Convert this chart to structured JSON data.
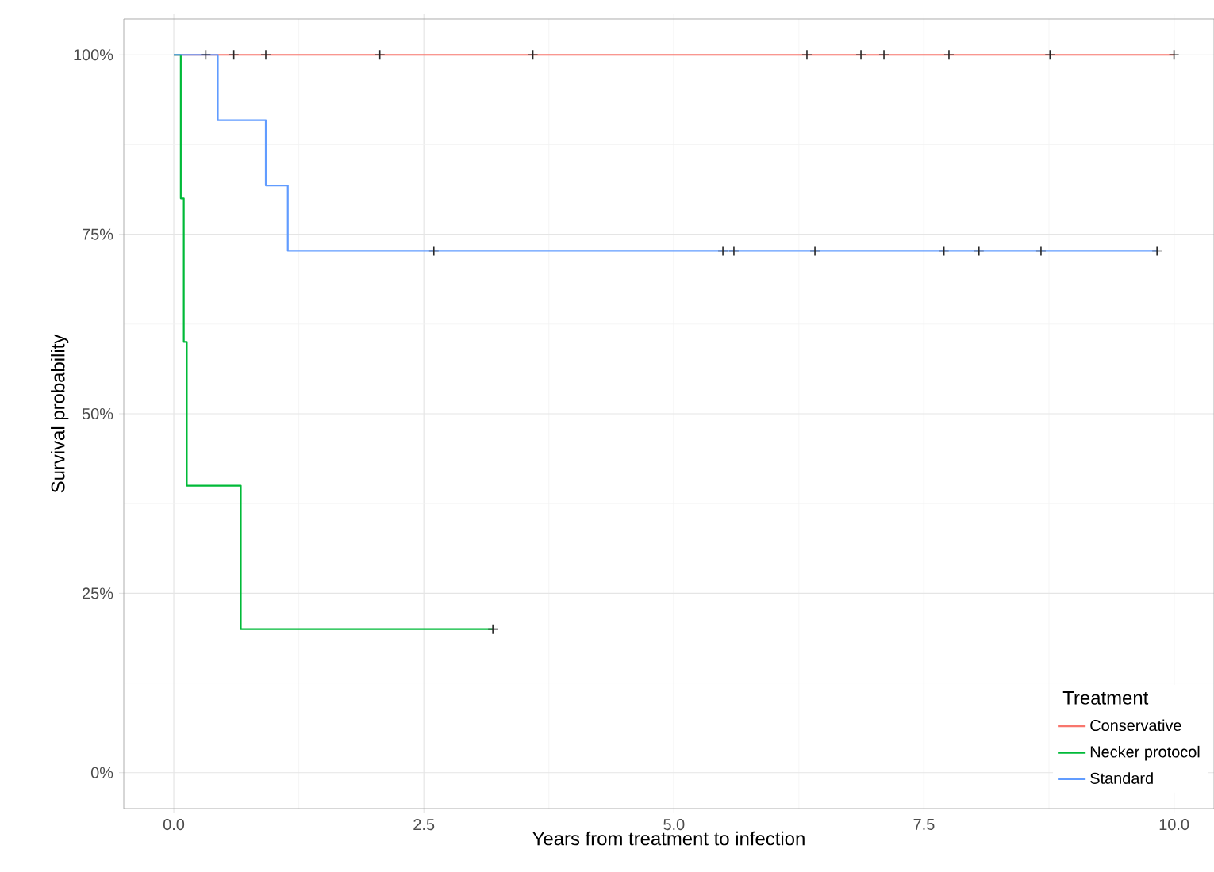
{
  "chart_data": {
    "type": "step",
    "xlabel": "Years from treatment to infection",
    "ylabel": "Survival probability",
    "legend_title": "Treatment",
    "xlim": [
      -0.5,
      10.4
    ],
    "ylim": [
      -5,
      105
    ],
    "xticks": [
      {
        "value": 0,
        "label": "0.0"
      },
      {
        "value": 2.5,
        "label": "2.5"
      },
      {
        "value": 5,
        "label": "5.0"
      },
      {
        "value": 7.5,
        "label": "7.5"
      },
      {
        "value": 10,
        "label": "10.0"
      }
    ],
    "yticks": [
      {
        "value": 0,
        "label": "0%"
      },
      {
        "value": 25,
        "label": "25%"
      },
      {
        "value": 50,
        "label": "50%"
      },
      {
        "value": 75,
        "label": "75%"
      },
      {
        "value": 100,
        "label": "100%"
      }
    ],
    "grid": true,
    "legend": "bottom right",
    "series": [
      {
        "name": "Conservative",
        "color": "#f8766d",
        "marker": "none",
        "x": [
          0,
          10.0
        ],
        "values": [
          100,
          100
        ]
      },
      {
        "name": "Necker protocol",
        "color": "#00ba38",
        "marker": "none",
        "x": [
          0,
          0.07,
          0.1,
          0.13,
          0.67,
          3.19
        ],
        "values": [
          100,
          80,
          60,
          40,
          20,
          20
        ]
      },
      {
        "name": "Standard",
        "color": "#619cff",
        "marker": "none",
        "x": [
          0,
          0.44,
          0.92,
          1.14,
          9.83
        ],
        "values": [
          100,
          90.9,
          81.8,
          72.7,
          72.7
        ]
      },
      {
        "type": "scatter",
        "color": "#262626",
        "marker": "cross",
        "x": [
          0.32,
          0.6,
          0.92,
          2.06,
          3.59,
          6.33,
          6.87,
          7.1,
          7.75,
          8.76,
          10.0
        ],
        "values": [
          100,
          100,
          100,
          100,
          100,
          100,
          100,
          100,
          100,
          100,
          100
        ]
      },
      {
        "type": "scatter",
        "color": "#262626",
        "marker": "cross",
        "x": [
          3.19
        ],
        "values": [
          20
        ]
      },
      {
        "type": "scatter",
        "color": "#262626",
        "marker": "cross",
        "x": [
          2.6,
          5.49,
          5.6,
          6.41,
          7.7,
          8.05,
          8.67,
          9.83
        ],
        "values": [
          72.7,
          72.7,
          72.7,
          72.7,
          72.7,
          72.7,
          72.7,
          72.7
        ]
      }
    ]
  }
}
